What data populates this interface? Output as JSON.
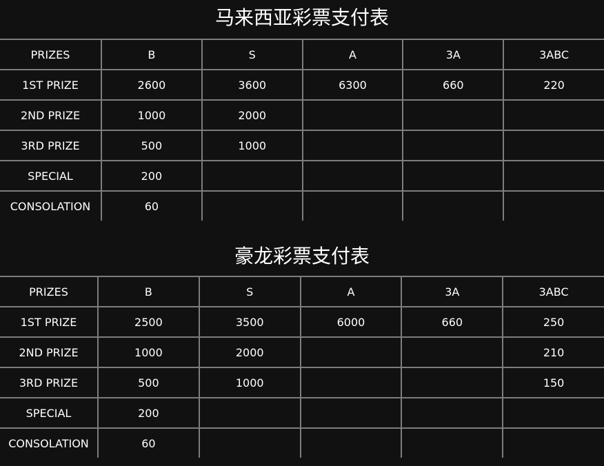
{
  "tables": [
    {
      "title": "马来西亚彩票支付表",
      "headers": [
        "PRIZES",
        "B",
        "S",
        "A",
        "3A",
        "3ABC"
      ],
      "rows": [
        [
          "1ST PRIZE",
          "2600",
          "3600",
          "6300",
          "660",
          "220"
        ],
        [
          "2ND PRIZE",
          "1000",
          "2000",
          "",
          "",
          ""
        ],
        [
          "3RD PRIZE",
          "500",
          "1000",
          "",
          "",
          ""
        ],
        [
          "SPECIAL",
          "200",
          "",
          "",
          "",
          ""
        ],
        [
          "CONSOLATION",
          "60",
          "",
          "",
          "",
          ""
        ]
      ]
    },
    {
      "title": "豪龙彩票支付表",
      "headers": [
        "PRIZES",
        "B",
        "S",
        "A",
        "3A",
        "3ABC"
      ],
      "rows": [
        [
          "1ST PRIZE",
          "2500",
          "3500",
          "6000",
          "660",
          "250"
        ],
        [
          "2ND PRIZE",
          "1000",
          "2000",
          "",
          "",
          "210"
        ],
        [
          "3RD PRIZE",
          "500",
          "1000",
          "",
          "",
          "150"
        ],
        [
          "SPECIAL",
          "200",
          "",
          "",
          "",
          ""
        ],
        [
          "CONSOLATION",
          "60",
          "",
          "",
          "",
          ""
        ]
      ]
    }
  ]
}
